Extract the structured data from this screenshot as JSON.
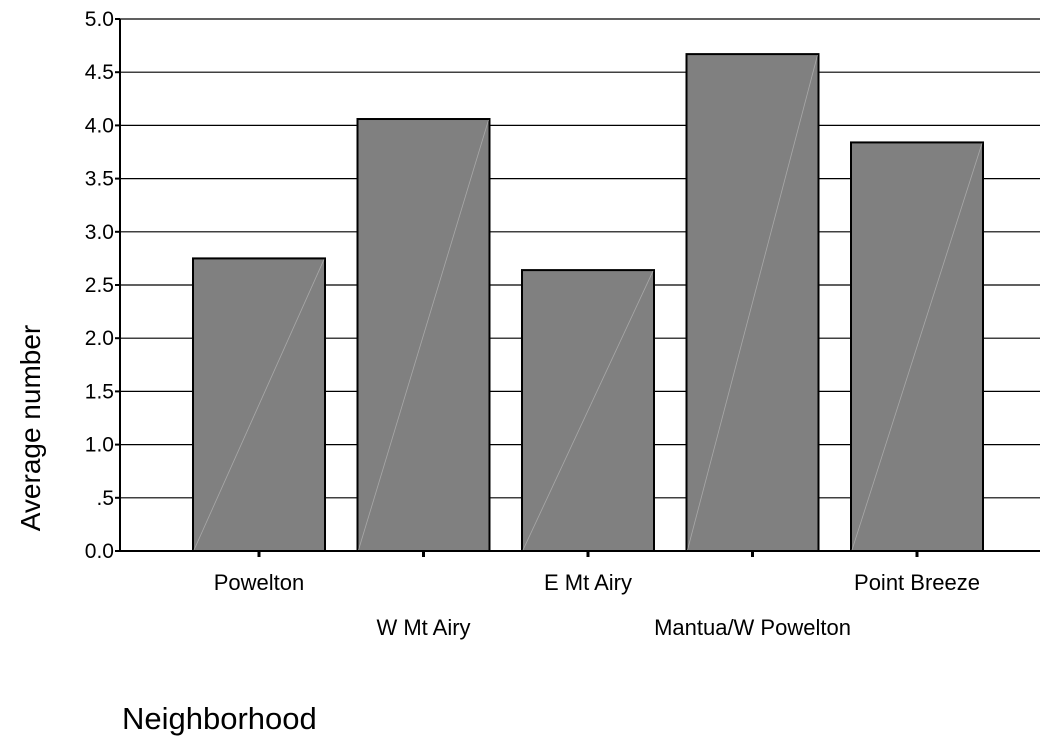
{
  "chart_data": {
    "type": "bar",
    "title": "",
    "xlabel": "Neighborhood",
    "ylabel": "Average number",
    "categories": [
      "Powelton",
      "W Mt Airy",
      "E Mt Airy",
      "Mantua/W Powelton",
      "Point Breeze"
    ],
    "values": [
      2.75,
      4.06,
      2.64,
      4.67,
      3.84
    ],
    "ylim": [
      0,
      5
    ],
    "yticks": [
      0,
      0.5,
      1,
      1.5,
      2,
      2.5,
      3,
      3.5,
      4,
      4.5,
      5
    ],
    "ytick_labels": [
      "0.0",
      ".5",
      "1.0",
      "1.5",
      "2.0",
      "2.5",
      "3.0",
      "3.5",
      "4.0",
      "4.5",
      "5.0"
    ],
    "grid": true,
    "bar_color": "#808080",
    "bar_edge_color": "#000000"
  }
}
